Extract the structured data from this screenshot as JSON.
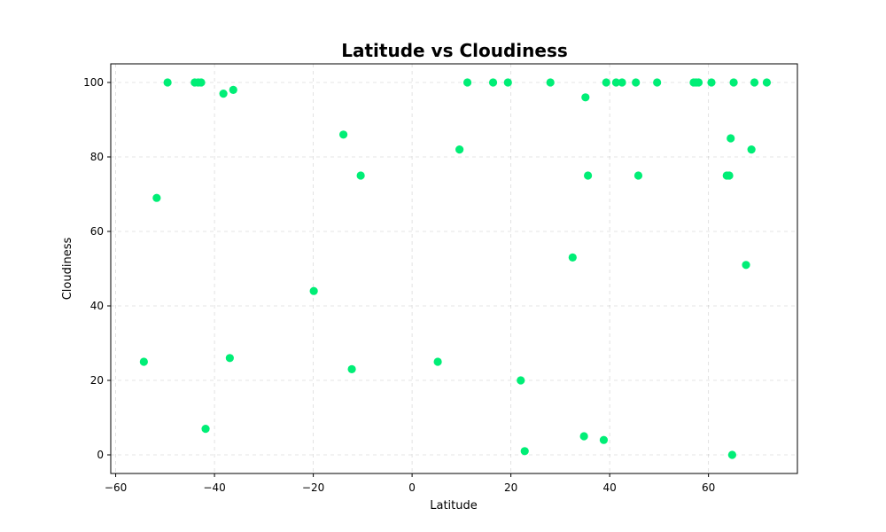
{
  "chart_data": {
    "type": "scatter",
    "title": "Latitude vs Cloudiness",
    "xlabel": "Latitude",
    "ylabel": "Cloudiness",
    "xlim": [
      -61,
      78
    ],
    "ylim": [
      -5,
      105
    ],
    "xticks": [
      -60,
      -40,
      -20,
      0,
      20,
      40,
      60
    ],
    "yticks": [
      0,
      20,
      40,
      60,
      80,
      100
    ],
    "grid": true,
    "marker_color": "#00ee76",
    "points": [
      {
        "x": -49.5,
        "y": 100
      },
      {
        "x": -44,
        "y": 100
      },
      {
        "x": -43.3,
        "y": 100
      },
      {
        "x": -42.7,
        "y": 100
      },
      {
        "x": -38.2,
        "y": 97
      },
      {
        "x": -36.2,
        "y": 98
      },
      {
        "x": -51.7,
        "y": 69
      },
      {
        "x": -54.3,
        "y": 25
      },
      {
        "x": -41.8,
        "y": 7
      },
      {
        "x": -36.9,
        "y": 26
      },
      {
        "x": -19.9,
        "y": 44
      },
      {
        "x": -13.9,
        "y": 86
      },
      {
        "x": -10.4,
        "y": 75
      },
      {
        "x": -12.2,
        "y": 23
      },
      {
        "x": 5.2,
        "y": 25
      },
      {
        "x": 9.6,
        "y": 82
      },
      {
        "x": 11.2,
        "y": 100
      },
      {
        "x": 16.4,
        "y": 100
      },
      {
        "x": 19.4,
        "y": 100
      },
      {
        "x": 22.0,
        "y": 20
      },
      {
        "x": 22.8,
        "y": 1
      },
      {
        "x": 28.0,
        "y": 100
      },
      {
        "x": 32.5,
        "y": 53
      },
      {
        "x": 34.8,
        "y": 5
      },
      {
        "x": 35.1,
        "y": 96
      },
      {
        "x": 35.6,
        "y": 75
      },
      {
        "x": 38.8,
        "y": 4
      },
      {
        "x": 39.3,
        "y": 100
      },
      {
        "x": 41.3,
        "y": 100
      },
      {
        "x": 42.5,
        "y": 100
      },
      {
        "x": 45.3,
        "y": 100
      },
      {
        "x": 45.8,
        "y": 75
      },
      {
        "x": 49.6,
        "y": 100
      },
      {
        "x": 57.0,
        "y": 100
      },
      {
        "x": 57.5,
        "y": 100
      },
      {
        "x": 58.0,
        "y": 100
      },
      {
        "x": 60.6,
        "y": 100
      },
      {
        "x": 63.7,
        "y": 75
      },
      {
        "x": 64.2,
        "y": 75
      },
      {
        "x": 64.5,
        "y": 85
      },
      {
        "x": 64.8,
        "y": 0
      },
      {
        "x": 65.1,
        "y": 100
      },
      {
        "x": 67.6,
        "y": 51
      },
      {
        "x": 68.7,
        "y": 82
      },
      {
        "x": 69.3,
        "y": 100
      },
      {
        "x": 71.8,
        "y": 100
      }
    ]
  }
}
